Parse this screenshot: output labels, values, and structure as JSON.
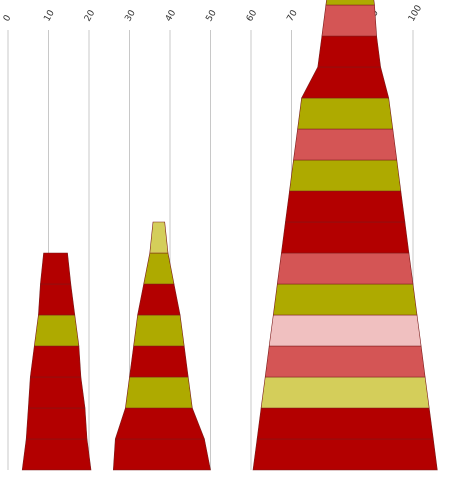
{
  "chart_data": {
    "type": "bar",
    "description_note": "",
    "x_axis": {
      "min": 0,
      "max": 110,
      "ticks": [
        0,
        10,
        20,
        30,
        40,
        50,
        60,
        70,
        80,
        90,
        100
      ],
      "grid": true,
      "position": "top"
    },
    "stacks": [
      {
        "segments": [
          {
            "start": 3.5,
            "end": 20.5,
            "color": "#b30000"
          },
          {
            "start": 4.5,
            "end": 19.5,
            "color": "#b30000"
          },
          {
            "start": 5.0,
            "end": 19.0,
            "color": "#b30000"
          },
          {
            "start": 5.5,
            "end": 18.0,
            "color": "#b30000"
          },
          {
            "start": 6.5,
            "end": 17.5,
            "color": "#aeaa00"
          },
          {
            "start": 7.5,
            "end": 16.5,
            "color": "#b30000"
          },
          {
            "start": 8.0,
            "end": 15.5,
            "color": "#b30000"
          }
        ]
      },
      {
        "segments": [
          {
            "start": 26.0,
            "end": 50.0,
            "color": "#b30000"
          },
          {
            "start": 26.5,
            "end": 48.5,
            "color": "#b30000"
          },
          {
            "start": 29.0,
            "end": 45.5,
            "color": "#aeaa00"
          },
          {
            "start": 30.0,
            "end": 44.5,
            "color": "#b30000"
          },
          {
            "start": 31.0,
            "end": 43.5,
            "color": "#aeaa00"
          },
          {
            "start": 32.0,
            "end": 42.5,
            "color": "#b30000"
          },
          {
            "start": 33.5,
            "end": 41.0,
            "color": "#aeaa00"
          },
          {
            "start": 35.0,
            "end": 39.5,
            "color": "#d4ce5a"
          }
        ]
      },
      {
        "segments": [
          {
            "start": 60.5,
            "end": 106.0,
            "color": "#b30000"
          },
          {
            "start": 61.5,
            "end": 105.0,
            "color": "#b30000"
          },
          {
            "start": 62.5,
            "end": 104.0,
            "color": "#d4ce5a"
          },
          {
            "start": 63.5,
            "end": 103.0,
            "color": "#d45555"
          },
          {
            "start": 64.5,
            "end": 102.0,
            "color": "#f0c0c0"
          },
          {
            "start": 65.5,
            "end": 101.0,
            "color": "#aeaa00"
          },
          {
            "start": 66.5,
            "end": 100.0,
            "color": "#d45555"
          },
          {
            "start": 67.5,
            "end": 99.0,
            "color": "#b30000"
          },
          {
            "start": 68.5,
            "end": 98.0,
            "color": "#b30000"
          },
          {
            "start": 69.5,
            "end": 97.0,
            "color": "#aeaa00"
          },
          {
            "start": 70.5,
            "end": 96.0,
            "color": "#d45555"
          },
          {
            "start": 71.5,
            "end": 95.0,
            "color": "#aeaa00"
          },
          {
            "start": 72.5,
            "end": 94.0,
            "color": "#b30000"
          },
          {
            "start": 76.5,
            "end": 92.0,
            "color": "#b30000"
          },
          {
            "start": 77.5,
            "end": 91.0,
            "color": "#d45555"
          },
          {
            "start": 78.5,
            "end": 90.5,
            "color": "#aeaa00"
          },
          {
            "start": 79.5,
            "end": 89.5,
            "color": "#f0c0c0"
          },
          {
            "start": 80.5,
            "end": 89.0,
            "color": "#f5f0c8"
          },
          {
            "start": 82.0,
            "end": 88.0,
            "color": "#b30000"
          }
        ]
      }
    ]
  }
}
